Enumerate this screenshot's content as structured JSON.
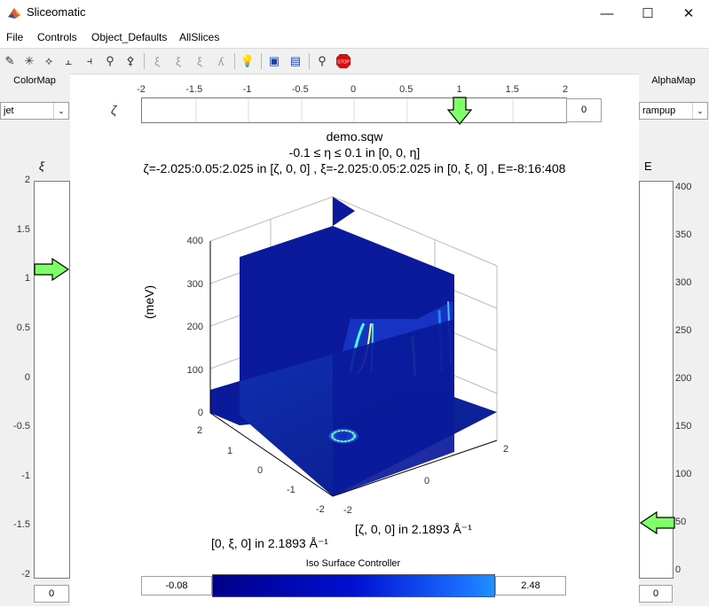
{
  "window": {
    "title": "Sliceomatic",
    "minimize": "—",
    "maximize": "☐",
    "close": "✕"
  },
  "menu": [
    "File",
    "Controls",
    "Object_Defaults",
    "AllSlices"
  ],
  "toolbar_icons": [
    "slice-x-icon",
    "slice-y-icon",
    "slice-z-icon",
    "iso-x-icon",
    "iso-y-icon",
    "iso-z-icon",
    "contour-x-icon",
    "contour-y-icon",
    "contour-z-icon",
    "contour-v-icon",
    "light-icon",
    "cube-icon",
    "box-icon",
    "pointer-icon",
    "stop-icon"
  ],
  "colormap": {
    "label": "ColorMap",
    "value": "jet"
  },
  "alphamap": {
    "label": "AlphaMap",
    "value": "rampup"
  },
  "zeta_slider": {
    "symbol": "ζ",
    "ticks": [
      "-2",
      "-1.5",
      "-1",
      "-0.5",
      "0",
      "0.5",
      "1",
      "1.5",
      "2"
    ],
    "value": "0",
    "arrow_value": 1.0,
    "range": [
      -2,
      2
    ]
  },
  "xi_slider": {
    "symbol": "ξ",
    "ticks": [
      "2",
      "1.5",
      "1",
      "0.5",
      "0",
      "-0.5",
      "-1",
      "-1.5",
      "-2"
    ],
    "value": "0",
    "arrow_value": 1.1,
    "range": [
      -2,
      2
    ]
  },
  "e_slider": {
    "symbol": "E",
    "ticks": [
      "400",
      "350",
      "300",
      "250",
      "200",
      "150",
      "100",
      "50",
      "0"
    ],
    "value": "0",
    "arrow_value": 50,
    "range": [
      -8,
      408
    ]
  },
  "plot": {
    "title1": "demo.sqw",
    "title2": "-0.1 ≤ η ≤ 0.1 in [0, 0, η]",
    "title3": "ζ=-2.025:0.05:2.025 in [ζ, 0, 0] , ξ=-2.025:0.05:2.025 in [0, ξ, 0] , E=-8:16:408",
    "zlabel": "(meV)",
    "zticks": [
      "400",
      "300",
      "200",
      "100",
      "0"
    ],
    "xlabel": "[ζ, 0, 0] in 2.1893 Å⁻¹",
    "ylabel": "[0, ξ, 0] in 2.1893 Å⁻¹",
    "xticks": [
      "-2",
      "0",
      "2"
    ],
    "yticks": [
      "2",
      "1",
      "0",
      "-1",
      "-2"
    ]
  },
  "iso": {
    "label": "Iso Surface Controller",
    "min": "-0.08",
    "max": "2.48"
  },
  "colors": {
    "arrow": "#7fff6a",
    "slice": "#0a1a9a",
    "panel": "#f0f0f0"
  }
}
